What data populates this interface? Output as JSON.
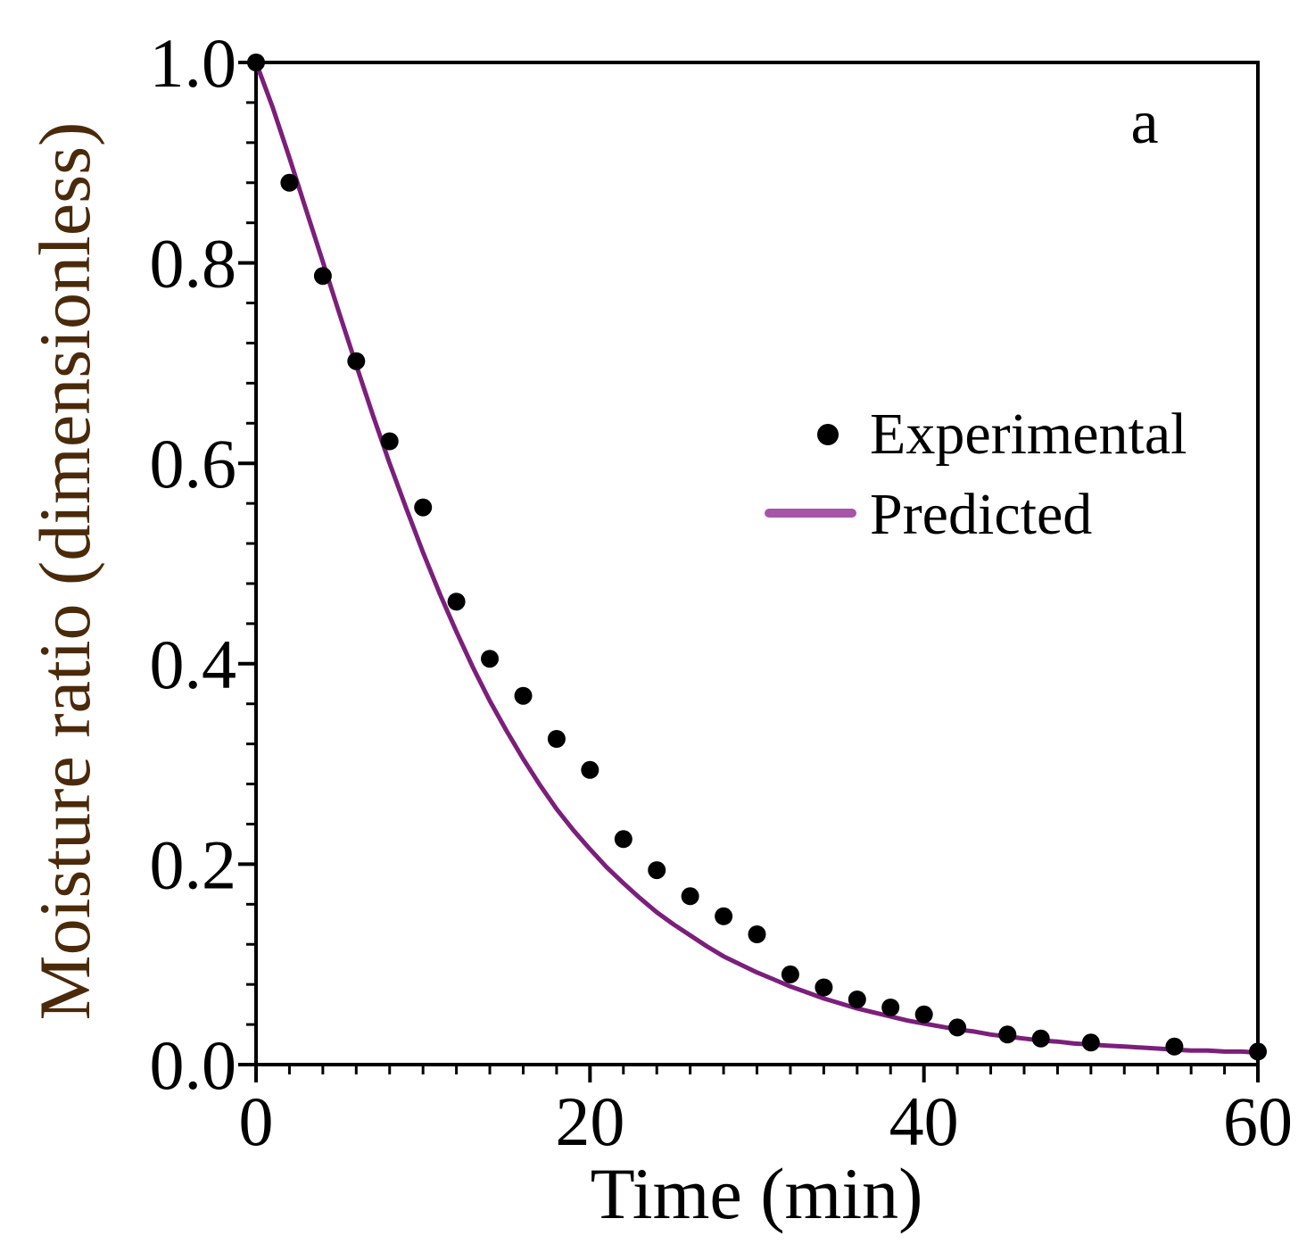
{
  "chart_data": {
    "type": "scatter",
    "title": "",
    "panel_label": "a",
    "xlabel": "Time (min)",
    "ylabel": "Moisture ratio (dimensionless)",
    "xlim": [
      0,
      60
    ],
    "ylim": [
      0,
      1.0
    ],
    "x_ticks": [
      0,
      20,
      40,
      60
    ],
    "x_tick_labels": [
      "0",
      "20",
      "40",
      "60"
    ],
    "y_ticks": [
      0.0,
      0.2,
      0.4,
      0.6,
      0.8,
      1.0
    ],
    "y_tick_labels": [
      "0.0",
      "0.2",
      "0.4",
      "0.6",
      "0.8",
      "1.0"
    ],
    "grid": false,
    "legend_position": "middle-right",
    "colors": {
      "axis": "#000000",
      "ylabel": "#4a2a0a",
      "experimental": "#000000",
      "predicted": "#7b1f7b",
      "predicted_legend": "#a855a8"
    },
    "series": [
      {
        "name": "Experimental",
        "kind": "scatter",
        "x": [
          0,
          2,
          4,
          6,
          8,
          10,
          12,
          14,
          16,
          18,
          20,
          22,
          24,
          26,
          28,
          30,
          32,
          34,
          36,
          38,
          40,
          42,
          45,
          47,
          50,
          55,
          60
        ],
        "y": [
          1.0,
          0.88,
          0.787,
          0.702,
          0.622,
          0.556,
          0.462,
          0.405,
          0.368,
          0.325,
          0.294,
          0.225,
          0.194,
          0.168,
          0.148,
          0.13,
          0.09,
          0.077,
          0.065,
          0.057,
          0.05,
          0.037,
          0.03,
          0.026,
          0.022,
          0.018,
          0.013
        ]
      },
      {
        "name": "Predicted",
        "kind": "line",
        "x": [
          0,
          1,
          2,
          3,
          4,
          5,
          6,
          7,
          8,
          9,
          10,
          11,
          12,
          13,
          14,
          15,
          16,
          17,
          18,
          19,
          20,
          21,
          22,
          23,
          24,
          25,
          26,
          27,
          28,
          29,
          30,
          31,
          32,
          33,
          34,
          35,
          36,
          37,
          38,
          39,
          40,
          41,
          42,
          43,
          44,
          45,
          46,
          47,
          48,
          49,
          50,
          51,
          52,
          53,
          54,
          55,
          56,
          57,
          58,
          59,
          60
        ],
        "y": [
          1.0,
          0.955,
          0.905,
          0.853,
          0.801,
          0.749,
          0.698,
          0.648,
          0.6,
          0.555,
          0.511,
          0.47,
          0.432,
          0.396,
          0.363,
          0.333,
          0.305,
          0.279,
          0.255,
          0.234,
          0.215,
          0.197,
          0.181,
          0.166,
          0.152,
          0.14,
          0.129,
          0.118,
          0.108,
          0.1,
          0.092,
          0.085,
          0.078,
          0.072,
          0.066,
          0.061,
          0.056,
          0.052,
          0.048,
          0.044,
          0.041,
          0.038,
          0.035,
          0.033,
          0.03,
          0.028,
          0.026,
          0.024,
          0.023,
          0.021,
          0.02,
          0.019,
          0.018,
          0.017,
          0.016,
          0.015,
          0.014,
          0.014,
          0.013,
          0.013,
          0.012
        ]
      }
    ]
  }
}
